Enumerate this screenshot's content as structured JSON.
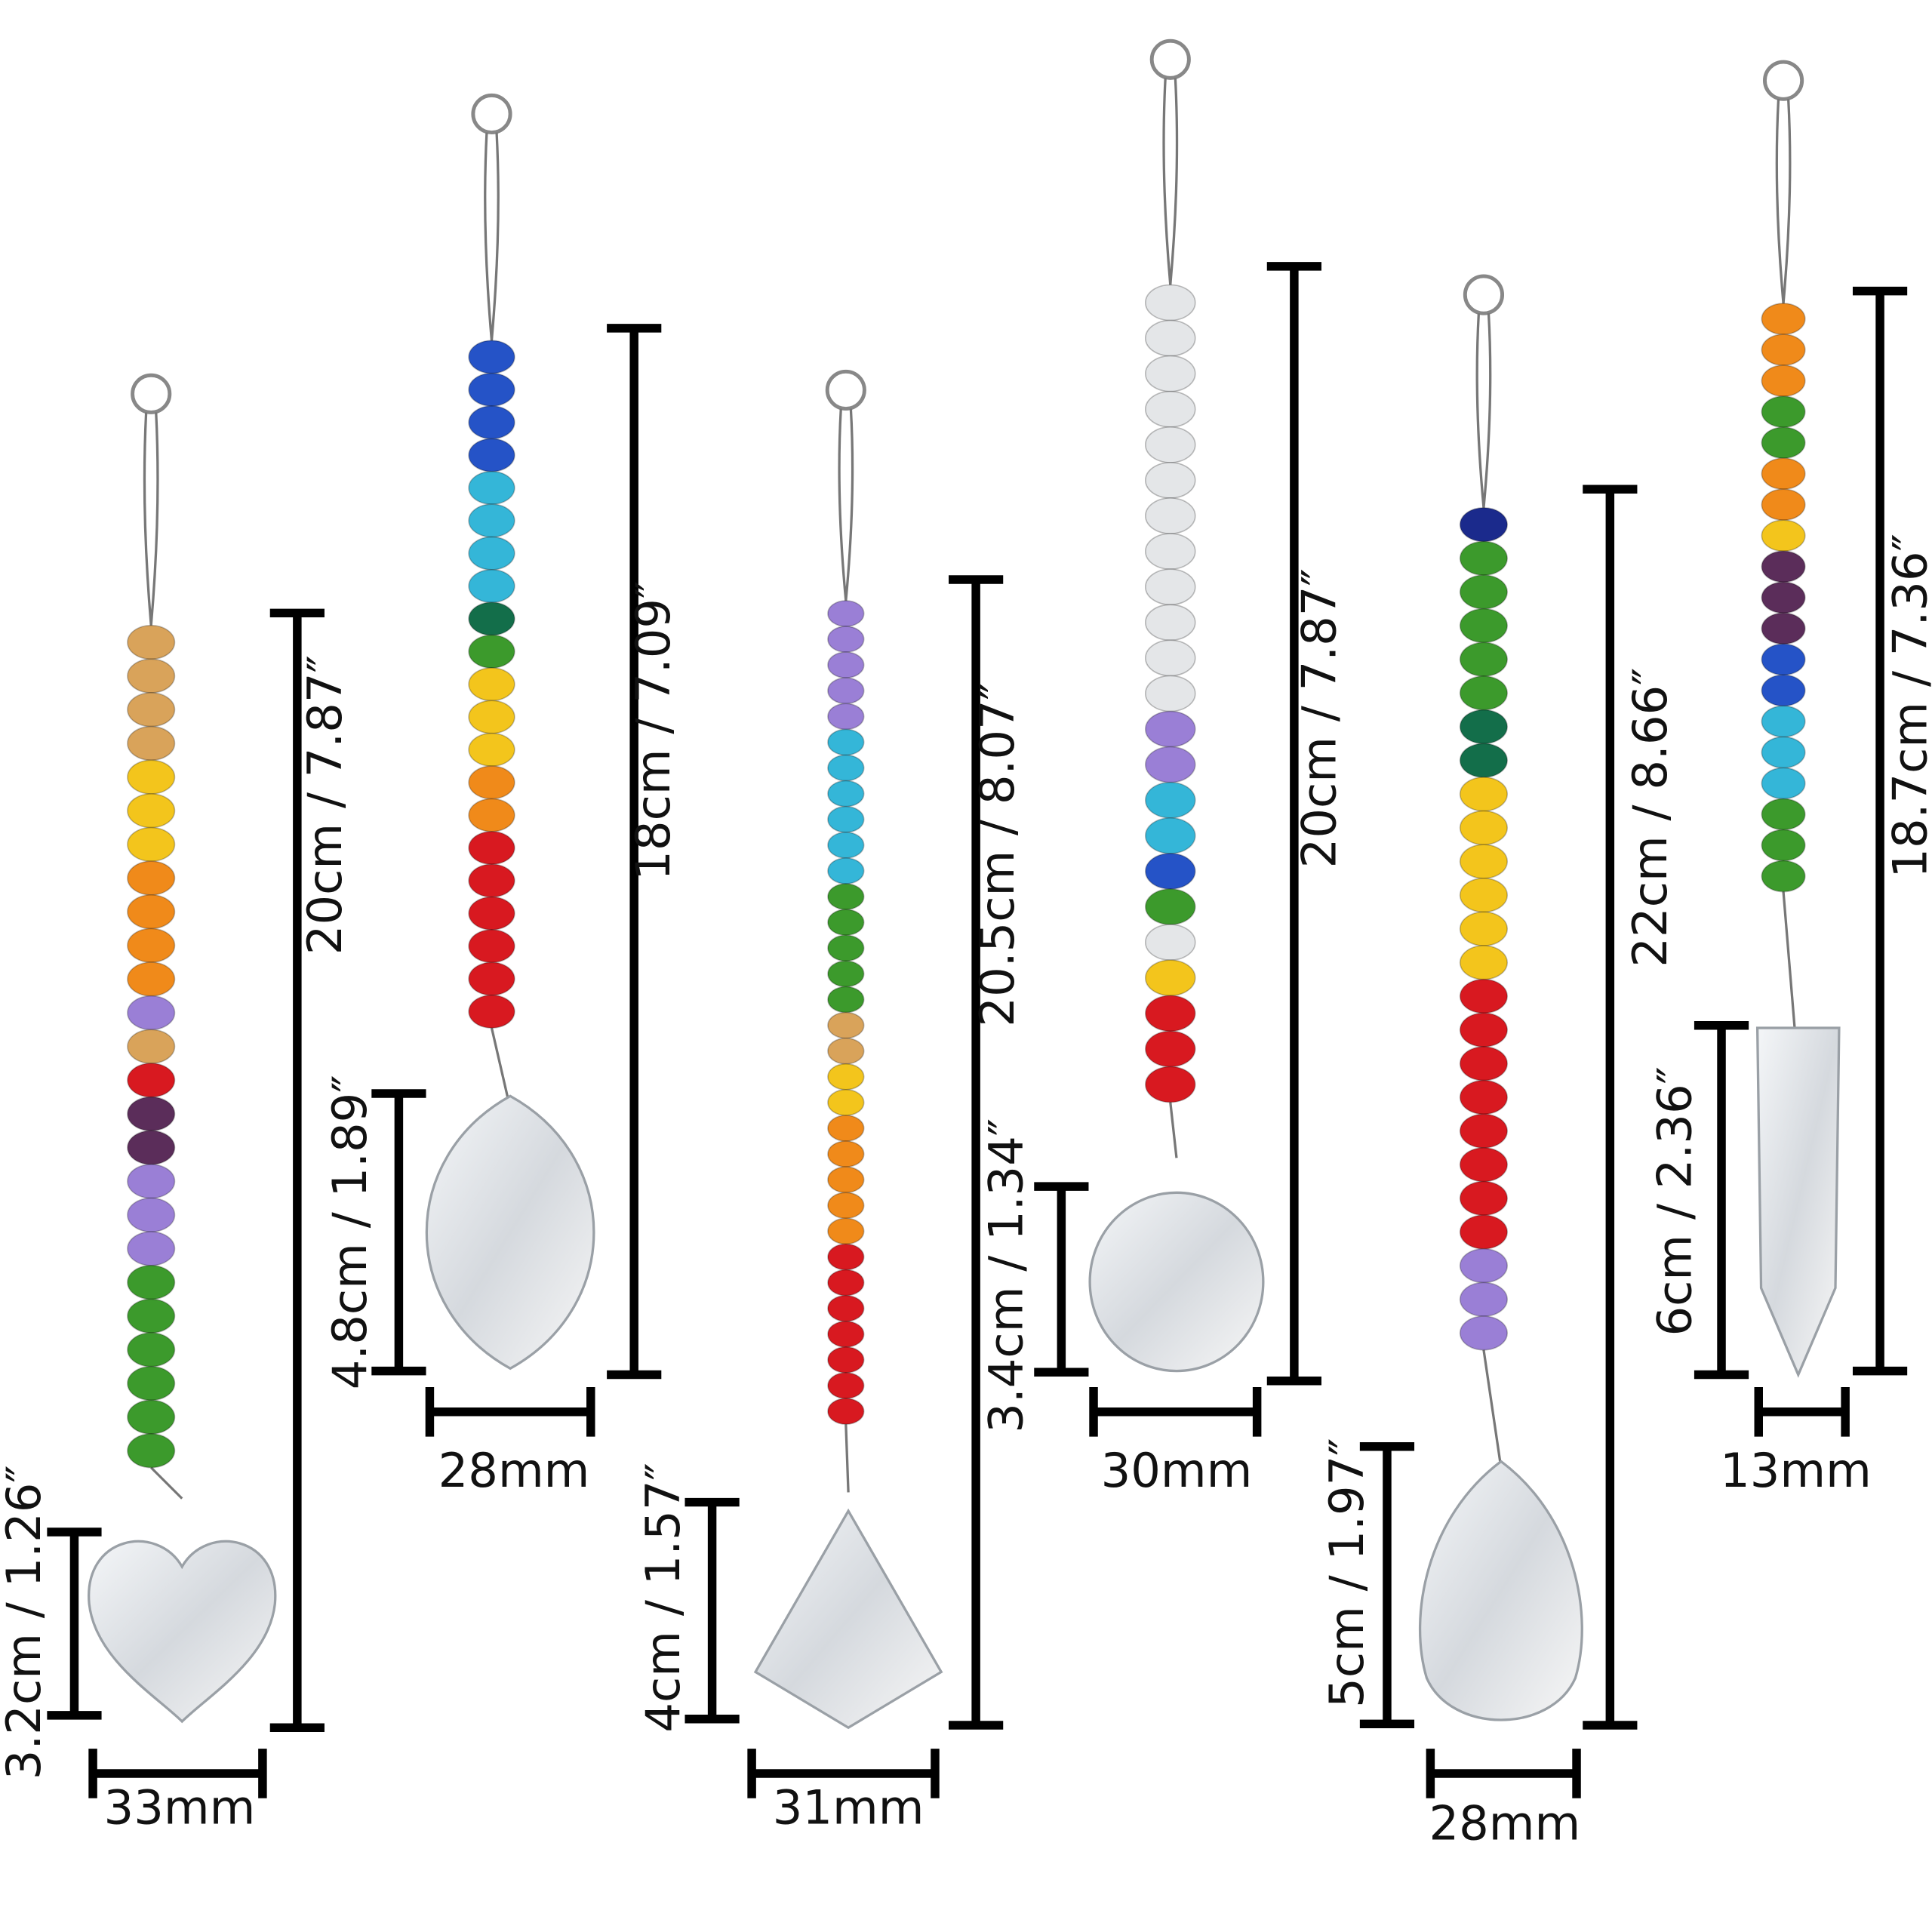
{
  "items": [
    {
      "length": "20cm / 7.87″",
      "pendant_height": "3.2cm / 1.26″",
      "width": "33mm"
    },
    {
      "length": "18cm / 7.09″",
      "pendant_height": "4.8cm / 1.89″",
      "width": "28mm"
    },
    {
      "length": "20.5cm / 8.07″",
      "pendant_height": "4cm / 1.57″",
      "width": "31mm"
    },
    {
      "length": "20cm / 7.87″",
      "pendant_height": "3.4cm / 1.34″",
      "width": "30mm"
    },
    {
      "length": "22cm / 8.66″",
      "pendant_height": "5cm / 1.97″",
      "width": "28mm"
    },
    {
      "length": "18.7cm / 7.36″",
      "pendant_height": "6cm / 2.36″",
      "width": "13mm"
    }
  ]
}
